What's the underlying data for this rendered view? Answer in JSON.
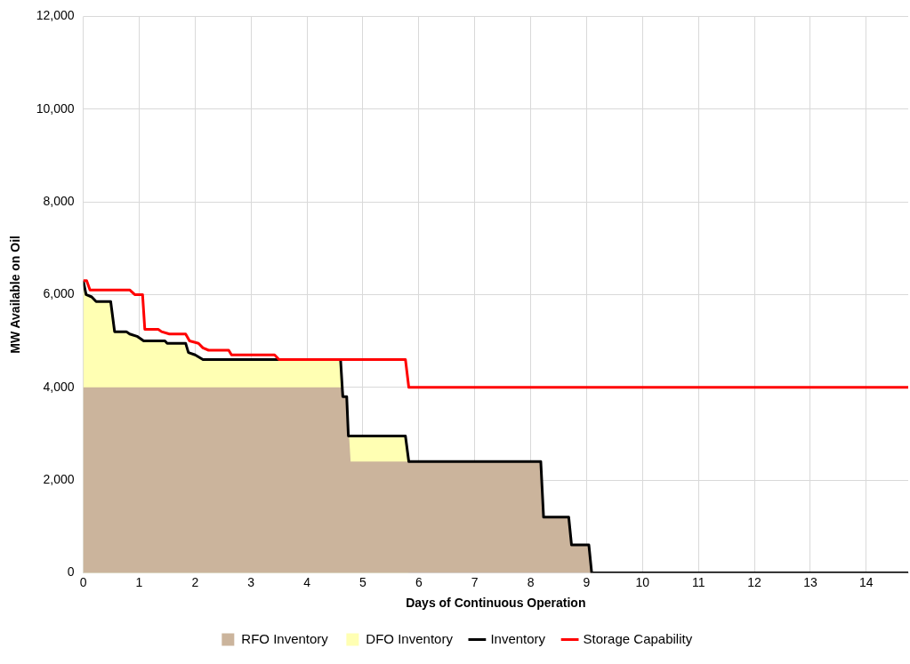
{
  "chart_data": {
    "type": "line",
    "xlabel": "Days of Continuous Operation",
    "ylabel": "MW Available on Oil",
    "xlim": [
      0,
      14.75
    ],
    "xticks": [
      0,
      1,
      2,
      3,
      4,
      5,
      6,
      7,
      8,
      9,
      10,
      11,
      12,
      13,
      14
    ],
    "ylim": [
      0,
      12000
    ],
    "yticks": [
      0,
      {
        "value": 2000,
        "label": "2,000"
      },
      {
        "value": 4000,
        "label": "4,000"
      },
      {
        "value": 6000,
        "label": "6,000"
      },
      {
        "value": 8000,
        "label": "8,000"
      },
      {
        "value": 10000,
        "label": "10,000"
      },
      {
        "value": 12000,
        "label": "12,000"
      }
    ],
    "grid": true,
    "legend": "bottom",
    "marker": "none",
    "line_style": "solid",
    "series": [
      {
        "name": "RFO Inventory",
        "type": "area",
        "color": "#cbb49c",
        "x": [
          0,
          4.64,
          4.67,
          4.71,
          4.78,
          8.18,
          8.23,
          8.68,
          8.73,
          9.04,
          9.09,
          14.75
        ],
        "values": [
          4000,
          4000,
          3800,
          3800,
          2400,
          2400,
          1200,
          1200,
          600,
          600,
          0,
          0
        ]
      },
      {
        "name": "DFO Inventory",
        "type": "area",
        "color": "#ffffb3",
        "x": [
          0,
          0.05,
          0.15,
          0.23,
          0.49,
          0.56,
          0.77,
          0.83,
          0.96,
          1.08,
          1.46,
          1.5,
          1.83,
          1.88,
          2.0,
          2.14,
          4.6,
          4.64,
          4.67,
          4.71,
          4.74,
          5.76,
          5.82
        ],
        "values": [
          6300,
          6000,
          5950,
          5850,
          5850,
          5200,
          5200,
          5150,
          5100,
          5000,
          5000,
          4950,
          4950,
          4750,
          4700,
          4600,
          4600,
          3800,
          3800,
          3800,
          2950,
          2950,
          2400
        ]
      },
      {
        "name": "Inventory",
        "type": "line",
        "color": "#000000",
        "x": [
          0,
          0.05,
          0.15,
          0.23,
          0.49,
          0.56,
          0.77,
          0.83,
          0.96,
          1.08,
          1.46,
          1.5,
          1.83,
          1.88,
          2.0,
          2.14,
          4.6,
          4.64,
          4.67,
          4.71,
          4.74,
          5.76,
          5.82,
          8.18,
          8.23,
          8.68,
          8.73,
          9.04,
          9.09,
          14.75
        ],
        "values": [
          6300,
          6000,
          5950,
          5850,
          5850,
          5200,
          5200,
          5150,
          5100,
          5000,
          5000,
          4950,
          4950,
          4750,
          4700,
          4600,
          4600,
          3800,
          3800,
          3800,
          2950,
          2950,
          2400,
          2400,
          1200,
          1200,
          600,
          600,
          0,
          0
        ]
      },
      {
        "name": "Storage Capability",
        "type": "line",
        "color": "#ff0000",
        "x": [
          0,
          0.06,
          0.12,
          0.83,
          0.92,
          1.06,
          1.1,
          1.34,
          1.4,
          1.54,
          1.83,
          1.9,
          2.06,
          2.14,
          2.24,
          2.6,
          2.65,
          3.42,
          3.5,
          5.76,
          5.82,
          14.75
        ],
        "values": [
          6300,
          6300,
          6100,
          6100,
          6000,
          6000,
          5250,
          5250,
          5200,
          5150,
          5150,
          5000,
          4950,
          4850,
          4800,
          4800,
          4700,
          4700,
          4600,
          4600,
          4000,
          4000
        ]
      }
    ]
  }
}
